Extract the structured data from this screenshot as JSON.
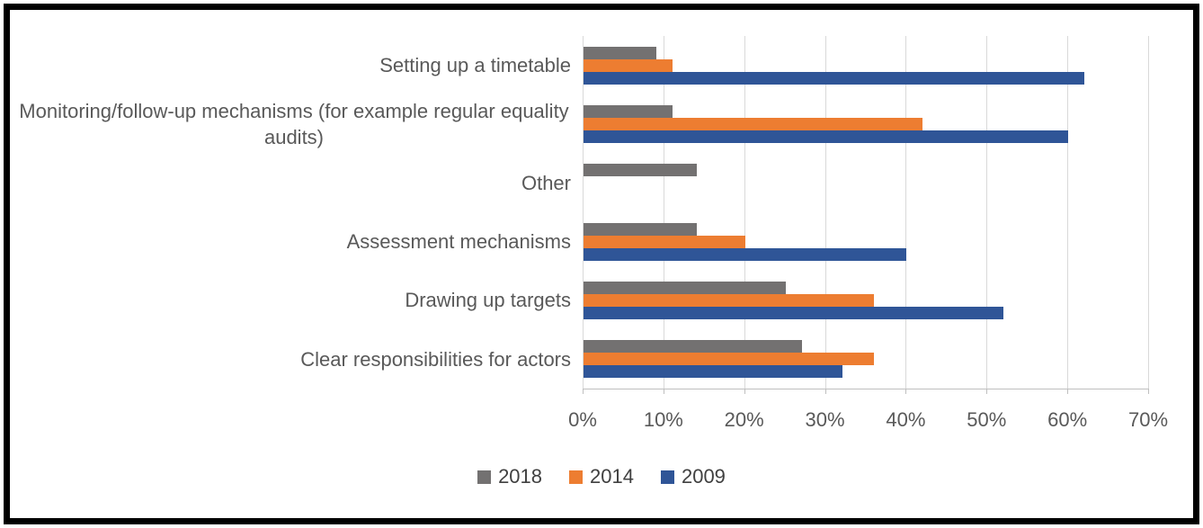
{
  "chart_data": {
    "type": "bar",
    "orientation": "horizontal",
    "title": "",
    "xlabel": "",
    "ylabel": "",
    "categories": [
      "Setting up a timetable",
      "Monitoring/follow-up mechanisms (for example regular equality audits)",
      "Other",
      "Assessment mechanisms",
      "Drawing up targets",
      "Clear responsibilities for actors"
    ],
    "series": [
      {
        "name": "2018",
        "color": "#737171",
        "values": [
          9,
          11,
          14,
          14,
          25,
          27
        ]
      },
      {
        "name": "2014",
        "color": "#ED7D31",
        "values": [
          11,
          42,
          0,
          20,
          36,
          36
        ]
      },
      {
        "name": "2009",
        "color": "#2F5597",
        "values": [
          62,
          60,
          0,
          40,
          52,
          32
        ]
      }
    ],
    "x_ticks": [
      "0%",
      "10%",
      "20%",
      "30%",
      "40%",
      "50%",
      "60%",
      "70%"
    ],
    "xlim": [
      0,
      70
    ],
    "grid": true,
    "legend_position": "bottom"
  },
  "styles": {
    "gridline_color": "#D9D9D9",
    "axis_line_color": "#BFBFBF",
    "label_color": "#595959",
    "legend_text_color": "#404040",
    "frame_color": "#000000"
  }
}
